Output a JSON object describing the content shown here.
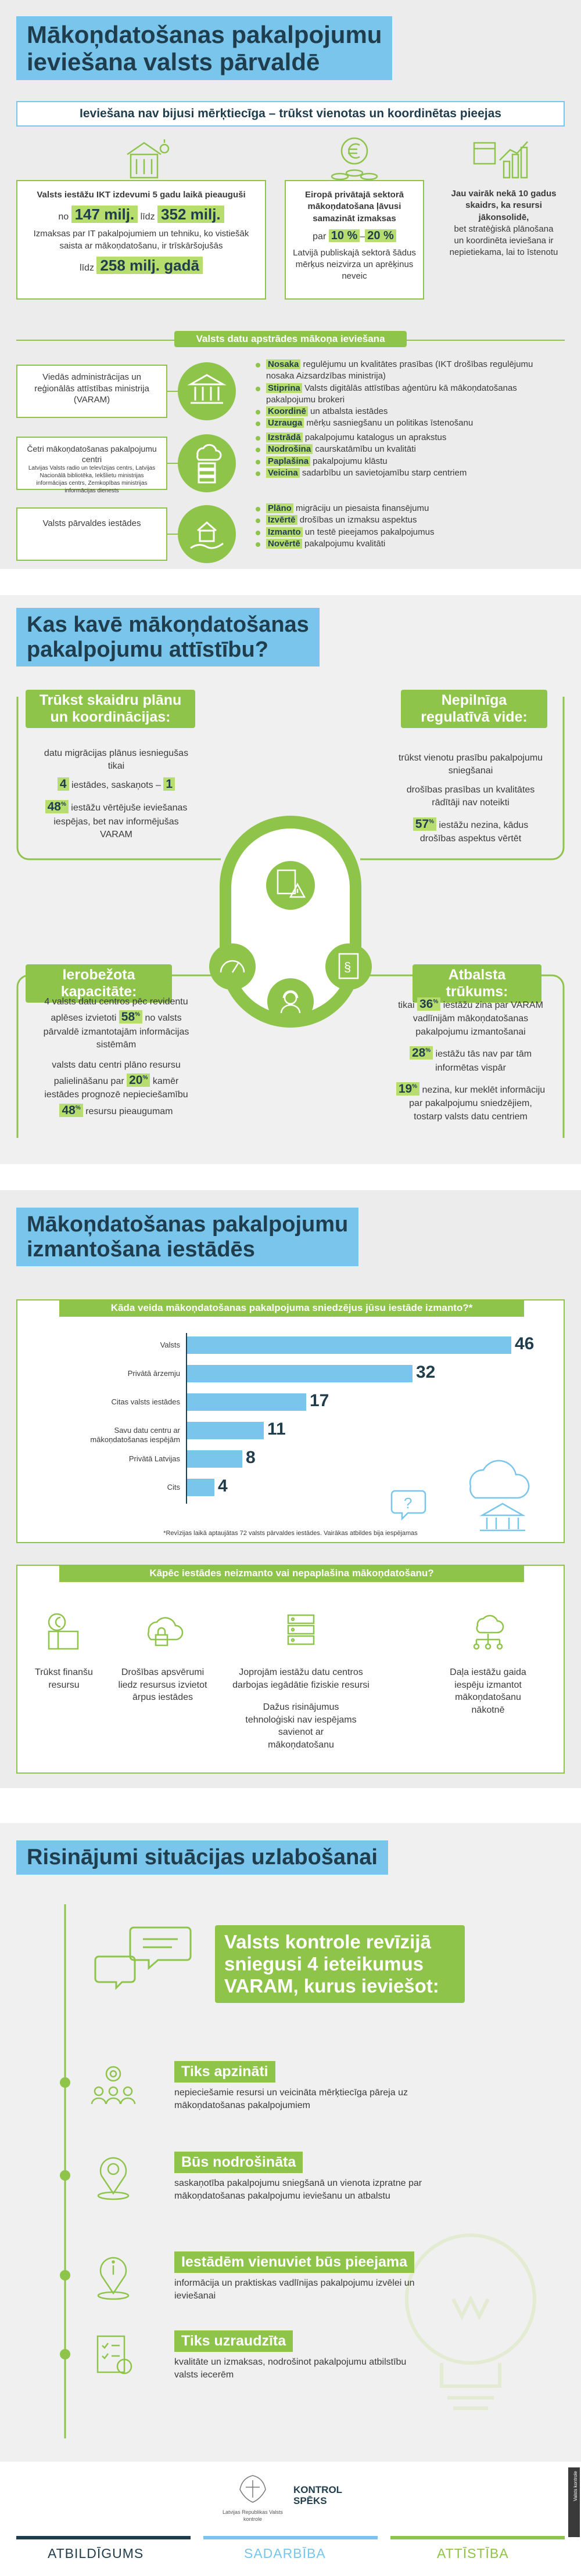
{
  "title": {
    "line1": "Mākoņdatošanas pakalpojumu",
    "line2": "ieviešana valsts pārvaldē"
  },
  "banner": "Ieviešana nav bijusi mērķtiecīga – trūkst vienotas un koordinētas pieejas",
  "facts": {
    "f1": {
      "lead": "Valsts iestāžu IKT izdevumi 5 gadu laikā pieauguši",
      "no": "no",
      "v1": "147 milj.",
      "lidz": "līdz",
      "v2": "352 milj.",
      "mid": "Izmaksas par IT pakalpojumiem un tehniku, ko vistiešāk saista ar mākoņdatošanu, ir trīskāršojušās",
      "lidz2": "līdz",
      "v3": "258 milj. gadā"
    },
    "f2": {
      "lead": "Eiropā privātajā sektorā mākoņdatošana ļāvusi samazināt izmaksas",
      "par": "par",
      "v1": "10 %",
      "dash": "–",
      "v2": "20 %",
      "tail": "Latvijā publiskajā sektorā šādus mērķus neizvirza un aprēķinus neveic"
    },
    "f3": {
      "text": "Jau vairāk nekā 10 gadus skaidrs, ka resursi jākonsolidē,",
      "tail": "bet stratēģiskā plānošana un koordinēta ieviešana ir nepietiekama, lai to īstenotu"
    }
  },
  "roles": {
    "header": "Valsts datu apstrādes mākoņa ieviešana",
    "items": [
      {
        "name": "Viedās administrācijas un reģionālās attīstības ministrija (VARAM)",
        "lines": [
          {
            "kw": "Nosaka",
            "rest": " regulējumu un kvalitātes prasības (IKT drošības regulējumu nosaka Aizsardzības ministrija)"
          },
          {
            "kw": "Stiprina",
            "rest": " Valsts digitālās attīstības aģentūru kā mākoņdatošanas pakalpojumu brokeri"
          },
          {
            "kw": "Koordinē",
            "rest": " un atbalsta iestādes"
          },
          {
            "kw": "Uzrauga",
            "rest": " mērķu sasniegšanu un politikas īstenošanu"
          }
        ]
      },
      {
        "name": "Četri mākoņdatošanas pakalpojumu centri",
        "sub": "Latvijas Valsts radio un televīzijas centrs, Latvijas Nacionālā bibliotēka, Iekšlietu ministrijas informācijas centrs, Zemkopības ministrijas informācijas dienests",
        "lines": [
          {
            "kw": "Izstrādā",
            "rest": " pakalpojumu katalogus un aprakstus"
          },
          {
            "kw": "Nodrošina",
            "rest": " caurskatāmību un kvalitāti"
          },
          {
            "kw": "Paplašina",
            "rest": " pakalpojumu klāstu"
          },
          {
            "kw": "Veicina",
            "rest": " sadarbību un savietojamību starp centriem"
          }
        ]
      },
      {
        "name": "Valsts pārvaldes iestādes",
        "lines": [
          {
            "kw": "Plāno",
            "rest": " migrāciju un piesaista finansējumu"
          },
          {
            "kw": "Izvērtē",
            "rest": " drošības un izmaksu aspektus"
          },
          {
            "kw": "Izmanto",
            "rest": " un testē pieejamos pakalpojumus"
          },
          {
            "kw": "Novērtē",
            "rest": " pakalpojumu kvalitāti"
          }
        ]
      }
    ]
  },
  "obstacles": {
    "title": {
      "line1": "Kas kavē mākoņdatošanas",
      "line2": "pakalpojumu attīstību?"
    },
    "q1": {
      "hdr1": "Trūkst skaidru plānu",
      "hdr2": "un koordinācijas:",
      "t1": "datu migrācijas plānus iesniegušas tikai",
      "n1": "4",
      "t2": " iestādes, saskaņots – ",
      "n2": "1",
      "n3": "48",
      "sup": "%",
      "t3": " iestāžu vērtējuše ieviešanas iespējas, bet nav informējušas VARAM"
    },
    "q2": {
      "hdr1": "Nepilnīga",
      "hdr2": "regulatīvā vide:",
      "t1": "trūkst vienotu prasību pakalpojumu sniegšanai",
      "t2": "drošības prasības un kvalitātes rādītāji nav noteikti",
      "n1": "57",
      "sup": "%",
      "t3": " iestāžu nezina, kādus drošības aspektus vērtēt"
    },
    "q3": {
      "hdr": "Ierobežota kapacitāte:",
      "t1": "4 valsts datu centros pēc revidentu aplēses izvietoti",
      "n1": "58",
      "sup": "%",
      "t2": " no valsts pārvaldē izmantotajām informācijas sistēmām",
      "t3": "valsts datu centri plāno resursu palielināšanu par",
      "n2": "20",
      "t4": " kamēr iestādes prognozē nepieciešamību",
      "n3": "48",
      "t5": " resursu pieaugumam"
    },
    "q4": {
      "hdr": "Atbalsta trūkums:",
      "t0": "tikai",
      "n1": "36",
      "sup": "%",
      "t1": " iestāžu zina par VARAM vadlīnijām mākoņdatošanas pakalpojumu izmantošanai",
      "n2": "28",
      "t2": " iestāžu tās nav par tām informētas vispār",
      "n3": "19",
      "t3": " nezina, kur meklēt informāciju par pakalpojumu sniedzējiem, tostarp valsts datu centriem"
    }
  },
  "usage": {
    "title": {
      "line1": "Mākoņdatošanas pakalpojumu",
      "line2": "izmantošana iestādēs"
    },
    "question": "Kāda veida mākoņdatošanas pakalpojuma sniedzējus jūsu iestāde izmanto?*",
    "footnote": "*Revīzijas laikā aptaujātas 72 valsts pārvaldes iestādes. Vairākas atbildes bija iespējamas",
    "reasons_question": "Kāpēc iestādes neizmanto vai nepaplašina mākoņdatošanu?",
    "reasons": [
      "Trūkst finanšu resursu",
      "Drošības apsvērumi liedz resursus izvietot ārpus iestādes",
      "Joprojām iestāžu datu centros darbojas iegādātie fiziskie resursi",
      "Dažus risinājumus tehnoloģiski nav iespējams savienot ar mākoņdatošanu",
      "Daļa iestāžu gaida iespēju izmantot mākoņdatošanu nākotnē"
    ]
  },
  "chart_data": {
    "type": "bar",
    "orientation": "horizontal",
    "title": "Kāda veida mākoņdatošanas pakalpojuma sniedzējus jūsu iestāde izmanto?*",
    "categories": [
      "Valsts",
      "Privātā ārzemju",
      "Citas valsts iestādes",
      "Savu datu centru ar mākoņdatošanas iespējām",
      "Privātā Latvijas",
      "Cits"
    ],
    "values": [
      46,
      32,
      17,
      11,
      8,
      4
    ],
    "xlim": [
      0,
      46
    ],
    "color": "#79c5ec"
  },
  "solutions": {
    "title": "Risinājumi situācijas uzlabošanai",
    "callout": {
      "line1": "Valsts kontrole revīzijā",
      "line2": "sniegusi 4 ieteikumus",
      "line3": "VARAM, kurus ieviešot:"
    },
    "items": [
      {
        "head": "Tiks apzināti",
        "text": "nepieciešamie resursi un veicināta mērķtiecīga pāreja uz mākoņdatošanas pakalpojumiem"
      },
      {
        "head": "Būs nodrošināta",
        "text": "saskaņotība pakalpojumu sniegšanā un vienota izpratne par mākoņdatošanas pakalpojumu ieviešanu un atbalstu"
      },
      {
        "head": "Iestādēm vienuviet būs pieejama",
        "text": "informācija un praktiskas vadlīnijas pakalpojumu izvēlei un ieviešanai"
      },
      {
        "head": "Tiks uzraudzīta",
        "text": "kvalitāte un izmaksas, nodrošinot pakalpojumu atbilstību valsts iecerēm"
      }
    ]
  },
  "footer": {
    "logo1": "Latvijas Republikas Valsts kontrole",
    "logo2a": "KONTROL",
    "logo2b": "SPĒKS",
    "words": [
      "ATBILDĪGUMS",
      "SADARBĪBA",
      "ATTĪSTĪBA"
    ],
    "colors": [
      "#1f3d4d",
      "#79c5ec",
      "#8fc44a"
    ],
    "side": "Valsts kontrole"
  },
  "colors": {
    "green": "#8fc44a",
    "blue": "#79c5ec",
    "navy": "#1f3d4d",
    "bg": "#ececec"
  }
}
